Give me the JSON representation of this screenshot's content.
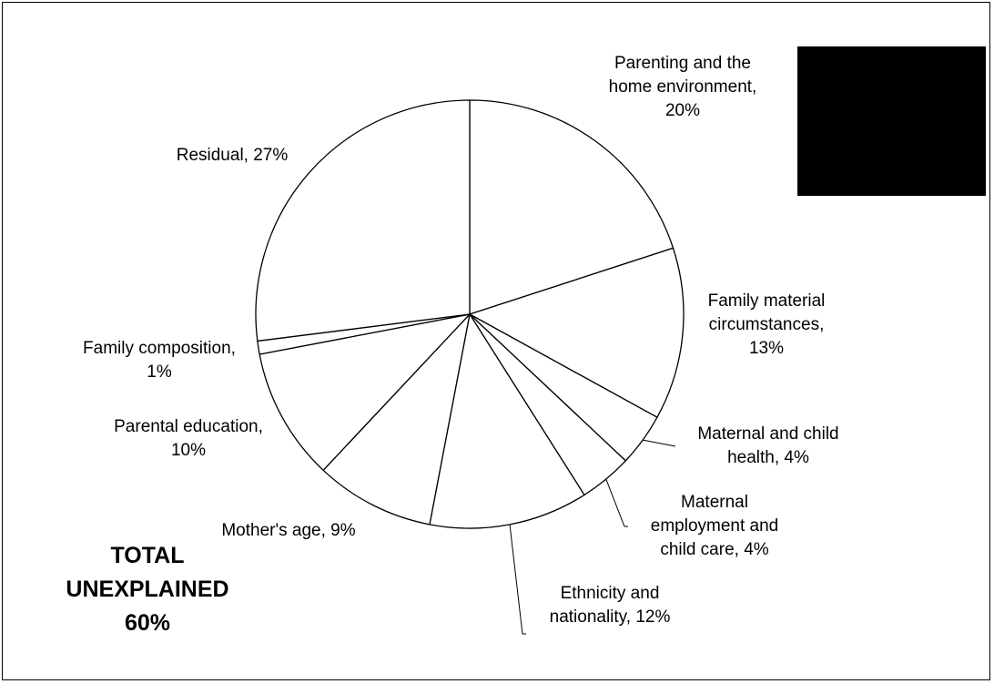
{
  "chart_data": {
    "type": "pie",
    "title": "",
    "start_angle_deg": 0,
    "direction": "clockwise",
    "slices": [
      {
        "label": "Parenting and the\nhome environment,\n20%",
        "value": 20
      },
      {
        "label": "Family material\ncircumstances,\n13%",
        "value": 13
      },
      {
        "label": "Maternal and child\nhealth, 4%",
        "value": 4
      },
      {
        "label": "Maternal\nemployment and\nchild care, 4%",
        "value": 4
      },
      {
        "label": "Ethnicity and\nnationality, 12%",
        "value": 12
      },
      {
        "label": "Mother's age, 9%",
        "value": 9
      },
      {
        "label": "Parental education,\n10%",
        "value": 10
      },
      {
        "label": "Family composition,\n1%",
        "value": 1
      },
      {
        "label": "Residual, 27%",
        "value": 27
      }
    ],
    "slice_fill": "#ffffff",
    "slice_stroke": "#000000"
  },
  "annotation": {
    "total_text": "TOTAL\nUNEXPLAINED\n60%"
  }
}
